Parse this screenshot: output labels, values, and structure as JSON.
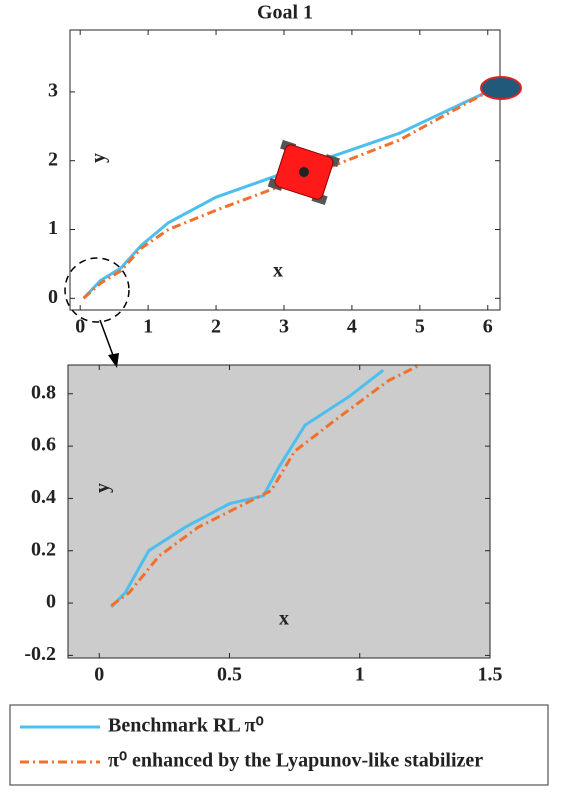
{
  "chart_data": [
    {
      "type": "line",
      "title": "Goal 1",
      "x_label": "x",
      "y_label": "y",
      "xlim": [
        -0.15,
        6.18
      ],
      "ylim": [
        -0.17,
        3.9
      ],
      "xticks": [
        0,
        1,
        2,
        3,
        4,
        5,
        6
      ],
      "yticks": [
        0,
        1,
        2,
        3
      ],
      "series": [
        {
          "color": "#4dbeee",
          "style": "solid",
          "x": [
            0.05,
            0.3,
            0.6,
            0.9,
            1.3,
            2,
            3,
            4.7,
            6.05
          ],
          "values": [
            0,
            0.26,
            0.44,
            0.77,
            1.1,
            1.47,
            1.82,
            2.4,
            3.03
          ]
        },
        {
          "color": "#f0702c",
          "style": "dashdot",
          "x": [
            0.05,
            0.3,
            0.6,
            0.9,
            1.3,
            2,
            3,
            4.7,
            6.05
          ],
          "values": [
            0,
            0.22,
            0.4,
            0.73,
            1.0,
            1.28,
            1.65,
            2.3,
            3.03
          ]
        }
      ]
    },
    {
      "type": "line",
      "x_label": "x",
      "y_label": "y",
      "background": "#cccccc",
      "xlim": [
        -0.12,
        1.5
      ],
      "ylim": [
        -0.21,
        0.91
      ],
      "xticks": [
        0,
        0.5,
        1,
        1.5
      ],
      "yticks": [
        -0.2,
        0,
        0.2,
        0.4,
        0.6,
        0.8
      ],
      "series": [
        {
          "name": "Benchmark RL π⁰",
          "color": "#4dbeee",
          "style": "solid",
          "x": [
            0.046,
            0.1,
            0.19,
            0.33,
            0.5,
            0.63,
            0.69,
            0.79,
            0.96,
            1.09
          ],
          "values": [
            -0.015,
            0.04,
            0.2,
            0.29,
            0.38,
            0.41,
            0.52,
            0.68,
            0.79,
            0.89
          ]
        },
        {
          "name": "π⁰ enhanced by the Lyapunov-like stabilizer",
          "color": "#f0702c",
          "style": "dashdot",
          "x": [
            0.046,
            0.115,
            0.23,
            0.38,
            0.54,
            0.66,
            0.75,
            0.92,
            1.11,
            1.23
          ],
          "values": [
            -0.01,
            0.04,
            0.18,
            0.29,
            0.37,
            0.43,
            0.58,
            0.71,
            0.85,
            0.91
          ]
        }
      ]
    }
  ]
}
